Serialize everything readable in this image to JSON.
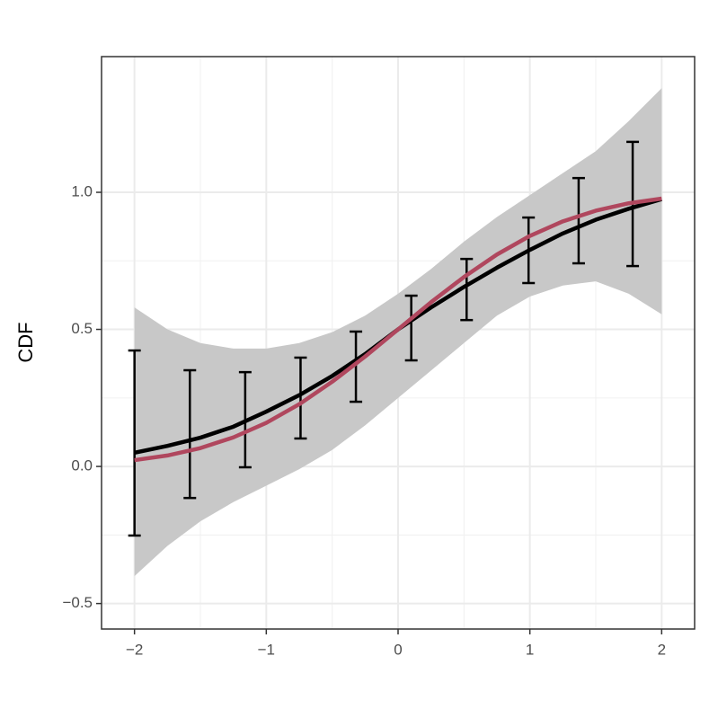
{
  "chart_data": {
    "type": "line",
    "y_label": "CDF",
    "xlim": [
      -2.25,
      2.25
    ],
    "ylim": [
      -0.593,
      1.495
    ],
    "xticks": [
      {
        "value": -2,
        "label": "−2"
      },
      {
        "value": -1,
        "label": "−1"
      },
      0,
      1,
      2
    ],
    "yticks": [
      {
        "value": -0.5,
        "label": "−0.5"
      },
      {
        "value": 0,
        "label": "0.0"
      },
      0.5,
      {
        "value": 1,
        "label": "1.0"
      }
    ],
    "grid": true,
    "x": [
      -2,
      -1.75,
      -1.5,
      -1.25,
      -1,
      -0.75,
      -0.5,
      -0.25,
      0,
      0.25,
      0.5,
      0.75,
      1,
      1.25,
      1.5,
      1.75,
      2
    ],
    "band": {
      "color": "#c8c8c8",
      "upper": [
        0.58,
        0.5,
        0.45,
        0.43,
        0.43,
        0.45,
        0.49,
        0.55,
        0.63,
        0.72,
        0.82,
        0.91,
        0.99,
        1.07,
        1.15,
        1.26,
        1.38
      ],
      "lower": [
        -0.4,
        -0.29,
        -0.2,
        -0.13,
        -0.07,
        -0.01,
        0.06,
        0.15,
        0.25,
        0.35,
        0.45,
        0.55,
        0.62,
        0.66,
        0.675,
        0.63,
        0.555
      ]
    },
    "series": [
      {
        "color": "#000000",
        "values": [
          0.05,
          0.075,
          0.105,
          0.145,
          0.2,
          0.26,
          0.33,
          0.41,
          0.5,
          0.58,
          0.655,
          0.725,
          0.79,
          0.85,
          0.9,
          0.94,
          0.975
        ]
      },
      {
        "color": "#b0475e",
        "values": [
          0.023,
          0.04,
          0.067,
          0.106,
          0.159,
          0.227,
          0.309,
          0.401,
          0.5,
          0.599,
          0.691,
          0.773,
          0.841,
          0.894,
          0.933,
          0.96,
          0.977
        ]
      }
    ],
    "errorbars": {
      "color": "#000000",
      "x": [
        -2,
        -1.58,
        -1.16,
        -0.74,
        -0.32,
        0.1,
        0.52,
        0.99,
        1.37,
        1.78
      ],
      "lower": [
        -0.252,
        -0.115,
        -0.003,
        0.102,
        0.236,
        0.387,
        0.534,
        0.669,
        0.741,
        0.731
      ],
      "upper": [
        0.423,
        0.351,
        0.344,
        0.397,
        0.492,
        0.623,
        0.757,
        0.908,
        1.052,
        1.184
      ]
    }
  }
}
